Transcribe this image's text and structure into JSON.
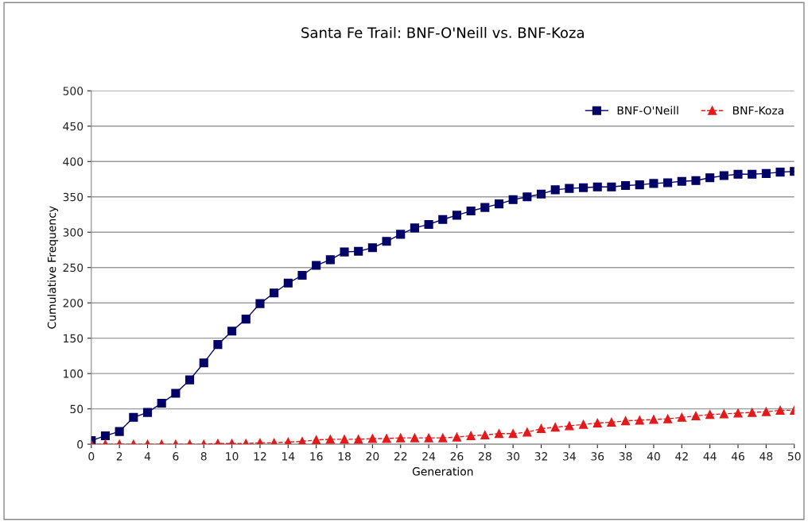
{
  "chart_data": {
    "type": "line",
    "title": "Santa Fe Trail: BNF-O'Neill vs. BNF-Koza",
    "xlabel": "Generation",
    "ylabel": "Cumulative Frequency",
    "x": [
      0,
      1,
      2,
      3,
      4,
      5,
      6,
      7,
      8,
      9,
      10,
      11,
      12,
      13,
      14,
      15,
      16,
      17,
      18,
      19,
      20,
      21,
      22,
      23,
      24,
      25,
      26,
      27,
      28,
      29,
      30,
      31,
      32,
      33,
      34,
      35,
      36,
      37,
      38,
      39,
      40,
      41,
      42,
      43,
      44,
      45,
      46,
      47,
      48,
      49,
      50
    ],
    "series": [
      {
        "name": "BNF-O'Neill",
        "color": "#000066",
        "marker": "square",
        "line_style": "solid",
        "values": [
          5,
          12,
          18,
          38,
          45,
          58,
          72,
          91,
          115,
          141,
          160,
          177,
          199,
          214,
          228,
          239,
          253,
          261,
          272,
          273,
          278,
          287,
          297,
          306,
          311,
          318,
          324,
          330,
          335,
          340,
          346,
          350,
          354,
          360,
          362,
          363,
          364,
          364,
          366,
          367,
          369,
          370,
          372,
          373,
          377,
          380,
          382,
          382,
          383,
          385,
          386
        ]
      },
      {
        "name": "BNF-Koza",
        "color": "#e31a1c",
        "marker": "triangle",
        "line_style": "dashed",
        "values": [
          0,
          0,
          0,
          0,
          0,
          0,
          0,
          0,
          0,
          1,
          1,
          1,
          2,
          2,
          3,
          4,
          6,
          7,
          7,
          7,
          8,
          8,
          9,
          9,
          9,
          9,
          10,
          12,
          13,
          15,
          15,
          17,
          22,
          24,
          26,
          28,
          30,
          31,
          33,
          34,
          35,
          36,
          38,
          40,
          42,
          43,
          44,
          45,
          46,
          48,
          48
        ]
      }
    ],
    "xlim": [
      0,
      50
    ],
    "xticks": [
      0,
      2,
      4,
      6,
      8,
      10,
      12,
      14,
      16,
      18,
      20,
      22,
      24,
      26,
      28,
      30,
      32,
      34,
      36,
      38,
      40,
      42,
      44,
      46,
      48,
      50
    ],
    "ylim": [
      0,
      500
    ],
    "yticks": [
      0,
      50,
      100,
      150,
      200,
      250,
      300,
      350,
      400,
      450,
      500
    ],
    "grid": "y",
    "legend": "top right"
  }
}
